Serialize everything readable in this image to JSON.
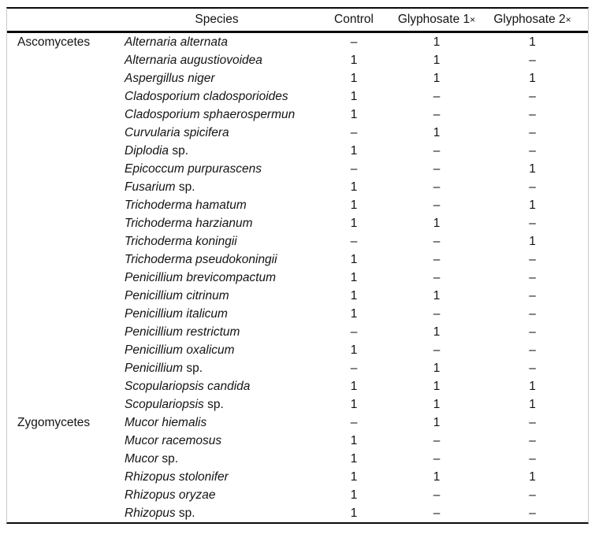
{
  "colors": {
    "background": "#ffffff",
    "text": "#141414",
    "rule": "#0a0a0a",
    "frame": "#c9c9c9"
  },
  "table": {
    "header": {
      "group_label": "",
      "species_label": "Species",
      "control_label": "Control",
      "glyphosate_1x_label": "Glyphosate 1",
      "glyphosate_1x_mult": "×",
      "glyphosate_2x_label": "Glyphosate 2",
      "glyphosate_2x_mult": "×"
    },
    "rows": [
      {
        "group": "Ascomycetes",
        "species_italic": "Alternaria alternata",
        "species_roman": "",
        "control": "–",
        "glyphosate_1x": "1",
        "glyphosate_2x": "1"
      },
      {
        "group": "",
        "species_italic": "Alternaria augustiovoidea",
        "species_roman": "",
        "control": "1",
        "glyphosate_1x": "1",
        "glyphosate_2x": "–"
      },
      {
        "group": "",
        "species_italic": "Aspergillus niger",
        "species_roman": "",
        "control": "1",
        "glyphosate_1x": "1",
        "glyphosate_2x": "1"
      },
      {
        "group": "",
        "species_italic": "Cladosporium cladosporioides",
        "species_roman": "",
        "control": "1",
        "glyphosate_1x": "–",
        "glyphosate_2x": "–"
      },
      {
        "group": "",
        "species_italic": "Cladosporium sphaerospermun",
        "species_roman": "",
        "control": "1",
        "glyphosate_1x": "–",
        "glyphosate_2x": "–"
      },
      {
        "group": "",
        "species_italic": "Curvularia spicifera",
        "species_roman": "",
        "control": "–",
        "glyphosate_1x": "1",
        "glyphosate_2x": "–"
      },
      {
        "group": "",
        "species_italic": "Diplodia",
        "species_roman": " sp.",
        "control": "1",
        "glyphosate_1x": "–",
        "glyphosate_2x": "–"
      },
      {
        "group": "",
        "species_italic": "Epicoccum purpurascens",
        "species_roman": "",
        "control": "–",
        "glyphosate_1x": "–",
        "glyphosate_2x": "1"
      },
      {
        "group": "",
        "species_italic": "Fusarium",
        "species_roman": " sp.",
        "control": "1",
        "glyphosate_1x": "–",
        "glyphosate_2x": "–"
      },
      {
        "group": "",
        "species_italic": "Trichoderma hamatum",
        "species_roman": "",
        "control": "1",
        "glyphosate_1x": "–",
        "glyphosate_2x": "1"
      },
      {
        "group": "",
        "species_italic": "Trichoderma harzianum",
        "species_roman": "",
        "control": "1",
        "glyphosate_1x": "1",
        "glyphosate_2x": "–"
      },
      {
        "group": "",
        "species_italic": "Trichoderma koningii",
        "species_roman": "",
        "control": "–",
        "glyphosate_1x": "–",
        "glyphosate_2x": "1"
      },
      {
        "group": "",
        "species_italic": "Trichoderma pseudokoningii",
        "species_roman": "",
        "control": "1",
        "glyphosate_1x": "–",
        "glyphosate_2x": "–"
      },
      {
        "group": "",
        "species_italic": "Penicillium brevicompactum",
        "species_roman": "",
        "control": "1",
        "glyphosate_1x": "–",
        "glyphosate_2x": "–"
      },
      {
        "group": "",
        "species_italic": "Penicillium citrinum",
        "species_roman": "",
        "control": "1",
        "glyphosate_1x": "1",
        "glyphosate_2x": "–"
      },
      {
        "group": "",
        "species_italic": "Penicillium italicum",
        "species_roman": "",
        "control": "1",
        "glyphosate_1x": "–",
        "glyphosate_2x": "–"
      },
      {
        "group": "",
        "species_italic": "Penicillium restrictum",
        "species_roman": "",
        "control": "–",
        "glyphosate_1x": "1",
        "glyphosate_2x": "–"
      },
      {
        "group": "",
        "species_italic": "Penicillium oxalicum",
        "species_roman": "",
        "control": "1",
        "glyphosate_1x": "–",
        "glyphosate_2x": "–"
      },
      {
        "group": "",
        "species_italic": "Penicillium",
        "species_roman": " sp.",
        "control": "–",
        "glyphosate_1x": "1",
        "glyphosate_2x": "–"
      },
      {
        "group": "",
        "species_italic": "Scopulariopsis candida",
        "species_roman": "",
        "control": "1",
        "glyphosate_1x": "1",
        "glyphosate_2x": "1"
      },
      {
        "group": "",
        "species_italic": "Scopulariopsis",
        "species_roman": " sp.",
        "control": "1",
        "glyphosate_1x": "1",
        "glyphosate_2x": "1"
      },
      {
        "group": "Zygomycetes",
        "species_italic": "Mucor hiemalis",
        "species_roman": "",
        "control": "–",
        "glyphosate_1x": "1",
        "glyphosate_2x": "–"
      },
      {
        "group": "",
        "species_italic": "Mucor racemosus",
        "species_roman": "",
        "control": "1",
        "glyphosate_1x": "–",
        "glyphosate_2x": "–"
      },
      {
        "group": "",
        "species_italic": "Mucor",
        "species_roman": " sp.",
        "control": "1",
        "glyphosate_1x": "–",
        "glyphosate_2x": "–"
      },
      {
        "group": "",
        "species_italic": "Rhizopus stolonifer",
        "species_roman": "",
        "control": "1",
        "glyphosate_1x": "1",
        "glyphosate_2x": "1"
      },
      {
        "group": "",
        "species_italic": "Rhizopus oryzae",
        "species_roman": "",
        "control": "1",
        "glyphosate_1x": "–",
        "glyphosate_2x": "–"
      },
      {
        "group": "",
        "species_italic": "Rhizopus",
        "species_roman": " sp.",
        "control": "1",
        "glyphosate_1x": "–",
        "glyphosate_2x": "–"
      }
    ]
  }
}
